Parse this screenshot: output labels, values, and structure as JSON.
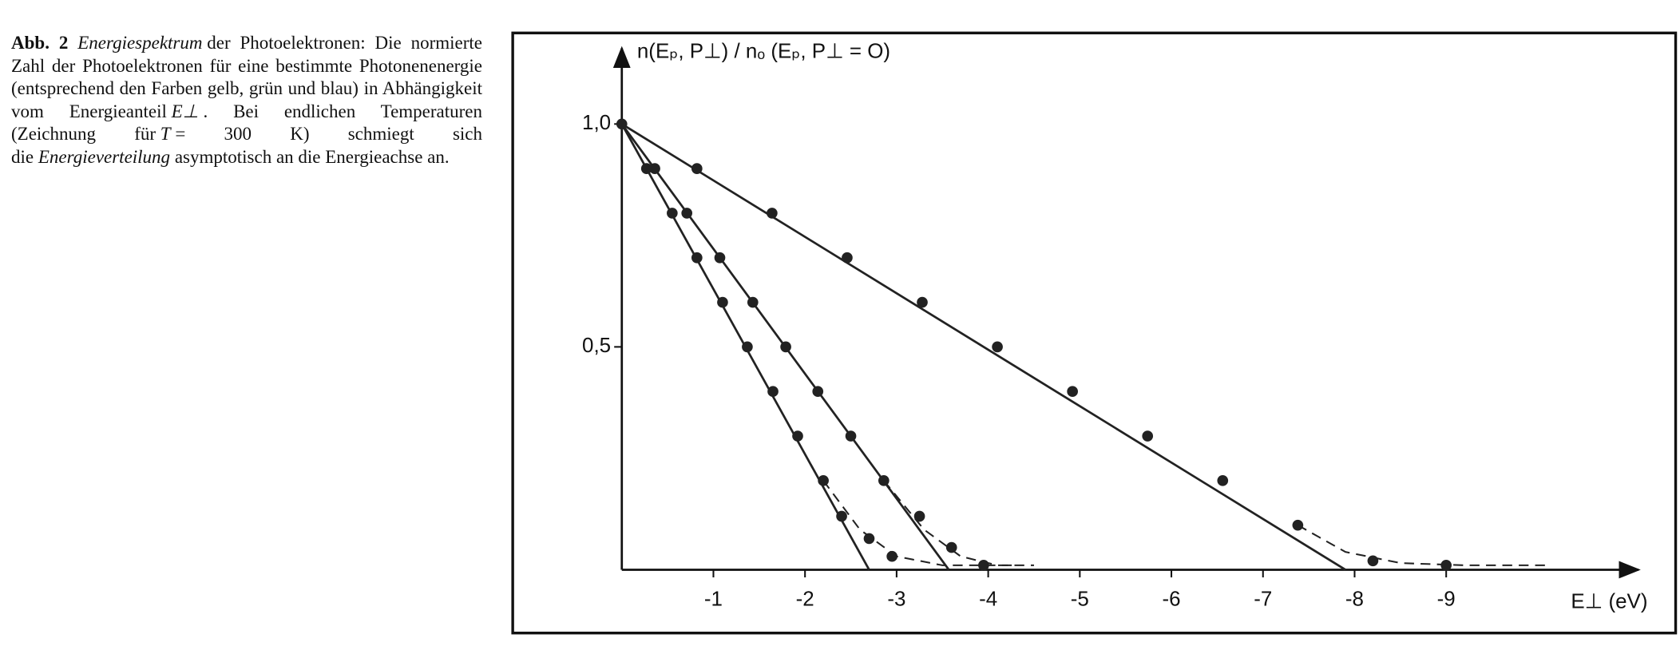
{
  "caption": {
    "label": "Abb. 2",
    "parts": [
      {
        "text": "Energiespektrum",
        "style": "italic"
      },
      {
        "text": "der Photoelektronen: Die normierte Zahl der Photoelektronen für eine bestimmte Photonenenergie (entsprechend den Farben gelb, grün und blau) in Abhängigkeit vom Energieanteil",
        "style": "normal"
      },
      {
        "text": "E⊥",
        "style": "italic"
      },
      {
        "text": ". Bei endlichen Temperaturen (Zeichnung für",
        "style": "normal"
      },
      {
        "text": "T",
        "style": "italic"
      },
      {
        "text": "= 300 K) schmiegt sich die",
        "style": "normal"
      },
      {
        "text": "Energieverteilung",
        "style": "italic"
      },
      {
        "text": "asymptotisch an die Energieachse an.",
        "style": "normal"
      }
    ]
  },
  "chart_data": {
    "type": "scatter",
    "y_label": "n(Eₚ, P⊥) / nₒ (Eₚ, P⊥  =  O)",
    "x_label": "E⊥ (eV)",
    "xlim": [
      0,
      -11.1
    ],
    "ylim": [
      0,
      1.17
    ],
    "xticks": [
      -1,
      -2,
      -3,
      -4,
      -5,
      -6,
      -7,
      -8,
      -9
    ],
    "yticks": [
      {
        "value": 0.5,
        "label": "0,5"
      },
      {
        "value": 1.0,
        "label": "1,0"
      }
    ],
    "series": [
      {
        "color": "#222222",
        "x": [
          0,
          -0.27,
          -0.55,
          -0.82,
          -1.1,
          -1.37,
          -1.65,
          -1.92,
          -2.2,
          -2.4,
          -2.7,
          -2.95
        ],
        "values": [
          1,
          0.9,
          0.8,
          0.7,
          0.6,
          0.5,
          0.4,
          0.3,
          0.2,
          0.12,
          0.07,
          0.03
        ],
        "fit_x": [
          0,
          -2.7
        ],
        "fit_values": [
          1,
          0
        ],
        "tail_x": [
          -2.2,
          -2.6,
          -3,
          -3.5,
          -4.3
        ],
        "tail_values": [
          0.2,
          0.09,
          0.03,
          0.01,
          0.01
        ]
      },
      {
        "color": "#222222",
        "x": [
          -0.36,
          -0.71,
          -1.07,
          -1.43,
          -1.79,
          -2.14,
          -2.5,
          -2.86,
          -3.25,
          -3.6,
          -3.95
        ],
        "values": [
          0.9,
          0.8,
          0.7,
          0.6,
          0.5,
          0.4,
          0.3,
          0.2,
          0.12,
          0.05,
          0.01
        ],
        "fit_x": [
          0,
          -3.57
        ],
        "fit_values": [
          1,
          0
        ],
        "tail_x": [
          -2.86,
          -3.3,
          -3.7,
          -4.1,
          -4.5
        ],
        "tail_values": [
          0.2,
          0.09,
          0.03,
          0.01,
          0.01
        ]
      },
      {
        "color": "#222222",
        "x": [
          -0.82,
          -1.64,
          -2.46,
          -3.28,
          -4.1,
          -4.92,
          -5.74,
          -6.56,
          -7.38,
          -8.2,
          -9
        ],
        "values": [
          0.9,
          0.8,
          0.7,
          0.6,
          0.5,
          0.4,
          0.3,
          0.2,
          0.1,
          0.02,
          0.01
        ],
        "fit_x": [
          0,
          -7.9
        ],
        "fit_values": [
          1,
          0
        ],
        "tail_x": [
          -7.38,
          -7.9,
          -8.5,
          -9.2,
          -10.1
        ],
        "tail_values": [
          0.1,
          0.04,
          0.015,
          0.01,
          0.01
        ]
      }
    ]
  }
}
